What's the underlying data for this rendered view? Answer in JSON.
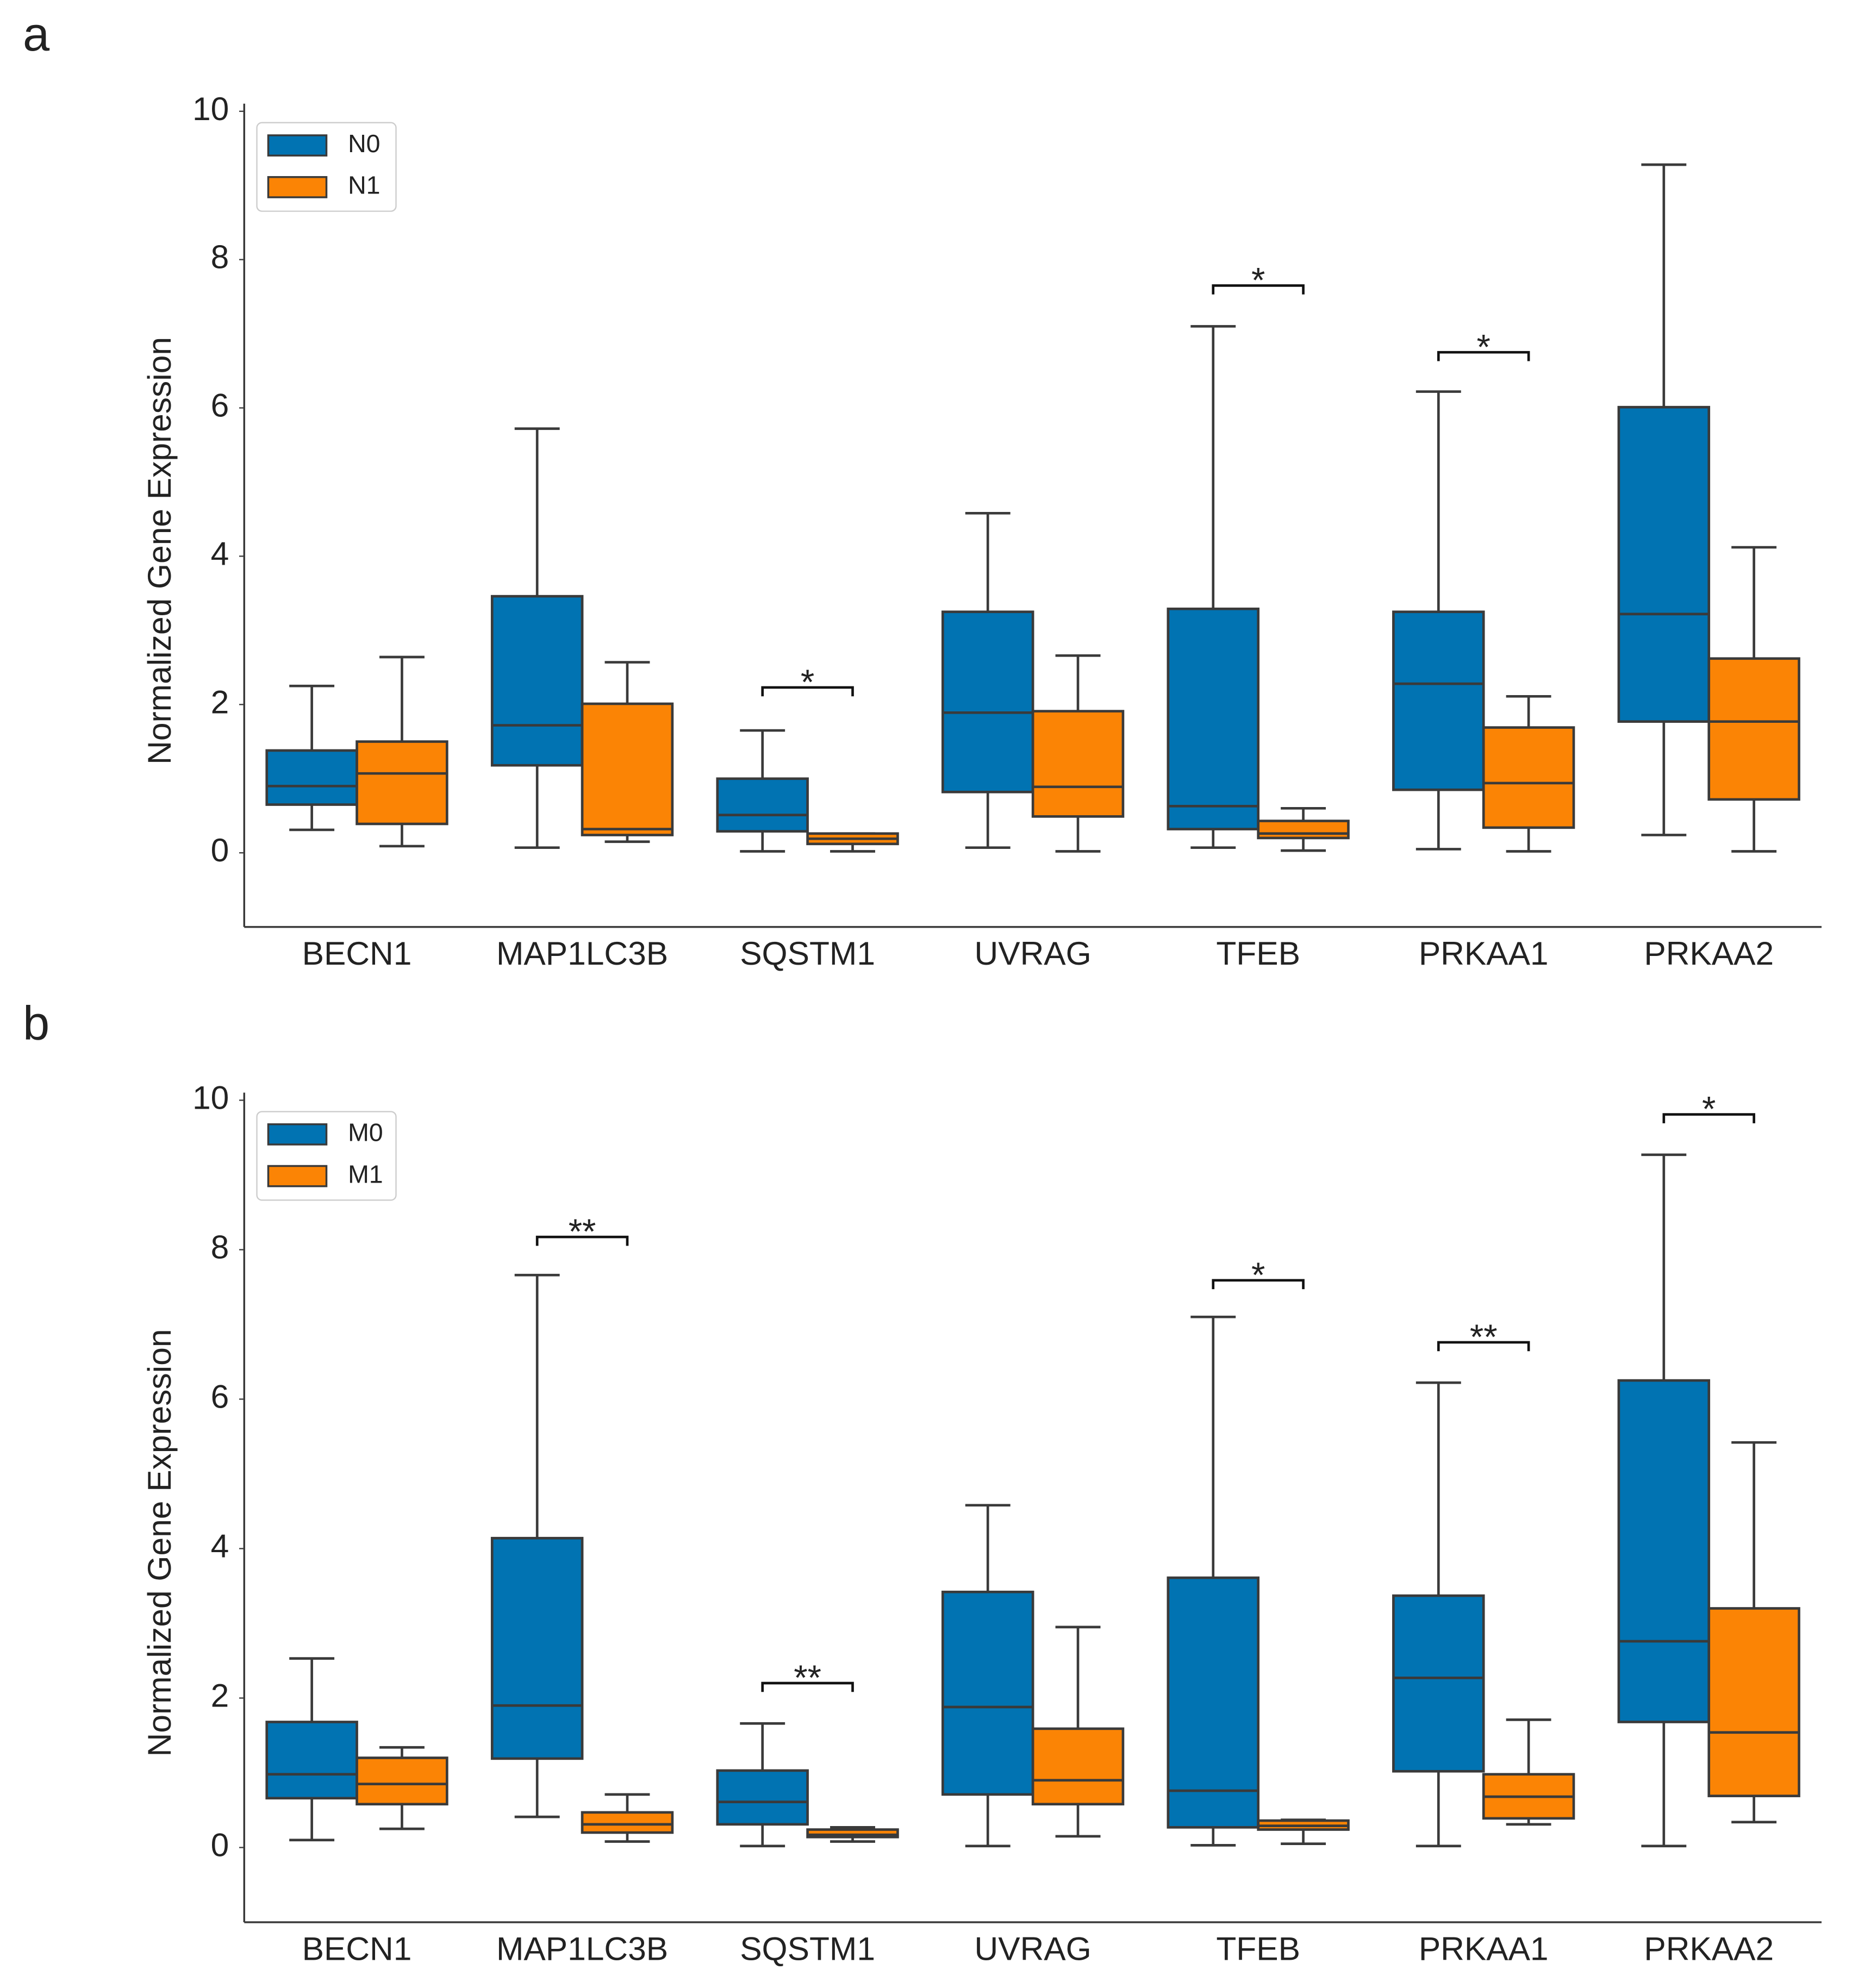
{
  "chart_data": [
    {
      "type": "box",
      "panel_label": "a",
      "ylabel": "Normalized Gene Expression",
      "categories": [
        "BECN1",
        "MAP1LC3B",
        "SQSTM1",
        "UVRAG",
        "TFEB",
        "PRKAA1",
        "PRKAA2"
      ],
      "ylim": [
        -1,
        10
      ],
      "yticks": [
        0,
        2,
        4,
        6,
        8,
        10
      ],
      "legend": "upper left",
      "series": [
        {
          "name": "N0",
          "color": "#0173b2",
          "whislo": [
            0.31,
            0.07,
            0.02,
            0.07,
            0.07,
            0.05,
            0.24
          ],
          "q1": [
            0.65,
            1.18,
            0.29,
            0.82,
            0.32,
            0.85,
            1.77
          ],
          "median": [
            0.9,
            1.72,
            0.51,
            1.89,
            0.63,
            2.28,
            3.22
          ],
          "q3": [
            1.38,
            3.46,
            1.0,
            3.25,
            3.29,
            3.25,
            6.01
          ],
          "whishi": [
            2.25,
            5.72,
            1.65,
            4.58,
            7.1,
            6.22,
            9.28
          ]
        },
        {
          "name": "N1",
          "color": "#fb8405",
          "whislo": [
            0.09,
            0.15,
            0.02,
            0.02,
            0.03,
            0.02,
            0.02
          ],
          "q1": [
            0.39,
            0.24,
            0.12,
            0.49,
            0.2,
            0.34,
            0.72
          ],
          "median": [
            1.07,
            0.32,
            0.19,
            0.89,
            0.26,
            0.94,
            1.77
          ],
          "q3": [
            1.5,
            2.01,
            0.26,
            1.91,
            0.43,
            1.69,
            2.62
          ],
          "whishi": [
            2.64,
            2.57,
            0.26,
            2.66,
            0.6,
            2.11,
            4.12
          ]
        }
      ],
      "annotations": [
        {
          "text": "*",
          "category": "SQSTM1",
          "y": 2.23
        },
        {
          "text": "*",
          "category": "TFEB",
          "y": 7.65
        },
        {
          "text": "*",
          "category": "PRKAA1",
          "y": 6.75
        }
      ]
    },
    {
      "type": "box",
      "panel_label": "b",
      "ylabel": "Normalized Gene Expression",
      "categories": [
        "BECN1",
        "MAP1LC3B",
        "SQSTM1",
        "UVRAG",
        "TFEB",
        "PRKAA1",
        "PRKAA2"
      ],
      "ylim": [
        -1,
        10
      ],
      "yticks": [
        0,
        2,
        4,
        6,
        8,
        10
      ],
      "legend": "upper left",
      "series": [
        {
          "name": "M0",
          "color": "#0173b2",
          "whislo": [
            0.1,
            0.41,
            0.02,
            0.02,
            0.03,
            0.02,
            0.02
          ],
          "q1": [
            0.66,
            1.19,
            0.31,
            0.71,
            0.27,
            1.02,
            1.68
          ],
          "median": [
            0.98,
            1.9,
            0.61,
            1.88,
            0.76,
            2.27,
            2.76
          ],
          "q3": [
            1.68,
            4.14,
            1.03,
            3.42,
            3.61,
            3.37,
            6.25
          ],
          "whishi": [
            2.53,
            7.66,
            1.66,
            4.58,
            7.1,
            6.22,
            9.27
          ]
        },
        {
          "name": "M1",
          "color": "#fb8405",
          "whislo": [
            0.25,
            0.08,
            0.08,
            0.15,
            0.05,
            0.31,
            0.34
          ],
          "q1": [
            0.58,
            0.2,
            0.14,
            0.58,
            0.24,
            0.39,
            0.69
          ],
          "median": [
            0.85,
            0.31,
            0.17,
            0.9,
            0.29,
            0.68,
            1.54
          ],
          "q3": [
            1.2,
            0.47,
            0.24,
            1.59,
            0.36,
            0.98,
            3.2
          ],
          "whishi": [
            1.34,
            0.71,
            0.27,
            2.95,
            0.37,
            1.71,
            5.42
          ]
        }
      ],
      "annotations": [
        {
          "text": "**",
          "category": "MAP1LC3B",
          "y": 8.17
        },
        {
          "text": "**",
          "category": "SQSTM1",
          "y": 2.2
        },
        {
          "text": "*",
          "category": "TFEB",
          "y": 7.59
        },
        {
          "text": "**",
          "category": "PRKAA1",
          "y": 6.76
        },
        {
          "text": "*",
          "category": "PRKAA2",
          "y": 9.81
        }
      ]
    }
  ]
}
